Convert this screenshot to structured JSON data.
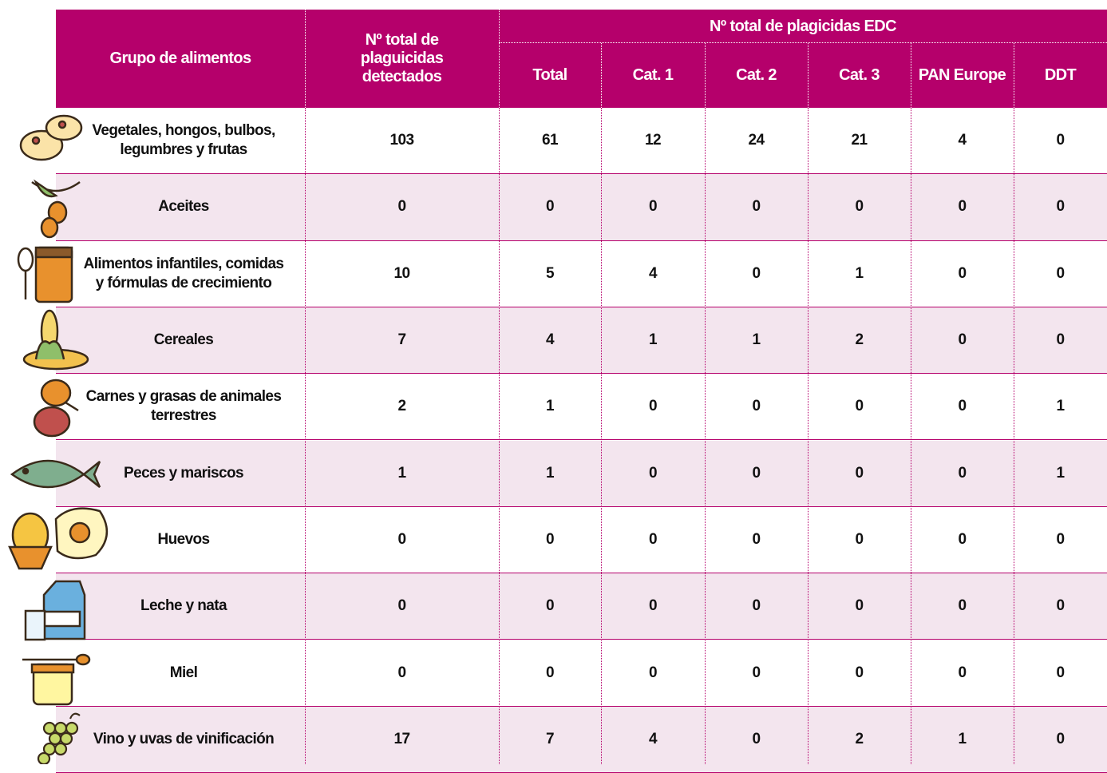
{
  "header": {
    "group": "Grupo de alimentos",
    "detected": "Nº total de plaguicidas detectados",
    "edc_title": "Nº total de plagicidas EDC",
    "columns": [
      "Total",
      "Cat. 1",
      "Cat. 2",
      "Cat. 3",
      "PAN Europe",
      "DDT"
    ]
  },
  "table": {
    "rows": [
      {
        "label": "Vegetales, hongos, bulbos, legumbres y frutas",
        "values": [
          103,
          61,
          12,
          24,
          21,
          4,
          0
        ]
      },
      {
        "label": "Aceites",
        "values": [
          0,
          0,
          0,
          0,
          0,
          0,
          0
        ]
      },
      {
        "label": "Alimentos infantiles, comidas y fórmulas de crecimiento",
        "values": [
          10,
          5,
          4,
          0,
          1,
          0,
          0
        ]
      },
      {
        "label": "Cereales",
        "values": [
          7,
          4,
          1,
          1,
          2,
          0,
          0
        ]
      },
      {
        "label": "Carnes y grasas de animales terrestres",
        "values": [
          2,
          1,
          0,
          0,
          0,
          0,
          1
        ]
      },
      {
        "label": "Peces y mariscos",
        "values": [
          1,
          1,
          0,
          0,
          0,
          0,
          1
        ]
      },
      {
        "label": "Huevos",
        "values": [
          0,
          0,
          0,
          0,
          0,
          0,
          0
        ]
      },
      {
        "label": "Leche y nata",
        "values": [
          0,
          0,
          0,
          0,
          0,
          0,
          0
        ]
      },
      {
        "label": "Miel",
        "values": [
          0,
          0,
          0,
          0,
          0,
          0,
          0
        ]
      },
      {
        "label": "Vino y uvas de vinificación",
        "values": [
          17,
          7,
          4,
          0,
          2,
          1,
          0
        ]
      }
    ]
  }
}
